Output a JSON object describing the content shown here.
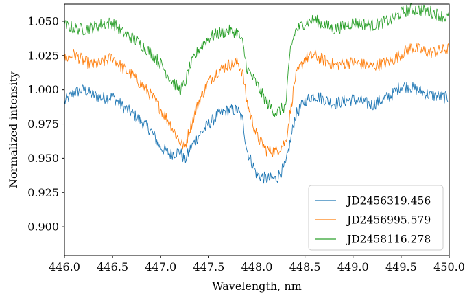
{
  "chart_data": {
    "type": "line",
    "xlabel": "Wavelength, nm",
    "ylabel": "Normalized intensity",
    "xlim": [
      446.0,
      450.0
    ],
    "ylim": [
      0.879,
      1.0625
    ],
    "xticks": [
      446.0,
      446.5,
      447.0,
      447.5,
      448.0,
      448.5,
      449.0,
      449.5,
      450.0
    ],
    "xtick_labels": [
      "446.0",
      "446.5",
      "447.0",
      "447.5",
      "448.0",
      "448.5",
      "449.0",
      "449.5",
      "450.0"
    ],
    "yticks": [
      0.9,
      0.925,
      0.95,
      0.975,
      1.0,
      1.025,
      1.05
    ],
    "ytick_labels": [
      "0.900",
      "0.925",
      "0.950",
      "0.975",
      "1.000",
      "1.025",
      "1.050"
    ],
    "grid": false,
    "legend_position": "lower-right",
    "series": [
      {
        "name": "JD2456319.456",
        "color": "#1f77b4",
        "x": [
          446.0,
          446.1,
          446.2,
          446.3,
          446.4,
          446.5,
          446.6,
          446.7,
          446.8,
          446.9,
          447.0,
          447.1,
          447.2,
          447.25,
          447.3,
          447.4,
          447.5,
          447.6,
          447.7,
          447.8,
          447.85,
          447.9,
          448.0,
          448.1,
          448.2,
          448.3,
          448.35,
          448.4,
          448.5,
          448.6,
          448.8,
          449.0,
          449.2,
          449.4,
          449.5,
          449.6,
          449.8,
          450.0
        ],
        "y": [
          0.991,
          0.998,
          1.0,
          0.996,
          0.994,
          0.995,
          0.988,
          0.983,
          0.977,
          0.97,
          0.958,
          0.953,
          0.955,
          0.948,
          0.956,
          0.967,
          0.975,
          0.982,
          0.985,
          0.985,
          0.978,
          0.955,
          0.938,
          0.935,
          0.935,
          0.945,
          0.963,
          0.981,
          0.992,
          0.996,
          0.99,
          0.993,
          0.989,
          0.996,
          1.003,
          1.002,
          0.996,
          0.994
        ]
      },
      {
        "name": "JD2456995.579",
        "color": "#ff7f0e",
        "x": [
          446.0,
          446.1,
          446.2,
          446.3,
          446.4,
          446.5,
          446.6,
          446.7,
          446.8,
          446.9,
          447.0,
          447.1,
          447.2,
          447.25,
          447.3,
          447.4,
          447.5,
          447.6,
          447.7,
          447.8,
          447.85,
          447.9,
          448.0,
          448.1,
          448.2,
          448.3,
          448.35,
          448.4,
          448.5,
          448.6,
          448.8,
          449.0,
          449.2,
          449.4,
          449.5,
          449.6,
          449.8,
          450.0
        ],
        "y": [
          1.022,
          1.026,
          1.021,
          1.018,
          1.02,
          1.024,
          1.016,
          1.011,
          1.004,
          0.996,
          0.986,
          0.975,
          0.962,
          0.958,
          0.971,
          0.992,
          1.006,
          1.014,
          1.018,
          1.02,
          1.013,
          0.99,
          0.966,
          0.956,
          0.955,
          0.962,
          0.985,
          1.009,
          1.023,
          1.025,
          1.018,
          1.02,
          1.017,
          1.021,
          1.026,
          1.031,
          1.027,
          1.03
        ]
      },
      {
        "name": "JD2458116.278",
        "color": "#2ca02c",
        "x": [
          446.0,
          446.1,
          446.2,
          446.3,
          446.4,
          446.5,
          446.6,
          446.7,
          446.8,
          446.9,
          447.0,
          447.1,
          447.2,
          447.25,
          447.3,
          447.4,
          447.5,
          447.6,
          447.7,
          447.8,
          447.85,
          447.9,
          448.0,
          448.1,
          448.2,
          448.3,
          448.35,
          448.4,
          448.5,
          448.6,
          448.8,
          449.0,
          449.2,
          449.4,
          449.5,
          449.6,
          449.8,
          450.0
        ],
        "y": [
          1.047,
          1.045,
          1.044,
          1.046,
          1.048,
          1.049,
          1.042,
          1.038,
          1.033,
          1.027,
          1.019,
          1.008,
          1.0,
          1.004,
          1.016,
          1.03,
          1.038,
          1.041,
          1.043,
          1.042,
          1.034,
          1.015,
          1.004,
          0.991,
          0.983,
          0.988,
          1.03,
          1.043,
          1.049,
          1.051,
          1.044,
          1.049,
          1.047,
          1.051,
          1.056,
          1.059,
          1.057,
          1.052
        ]
      }
    ]
  }
}
